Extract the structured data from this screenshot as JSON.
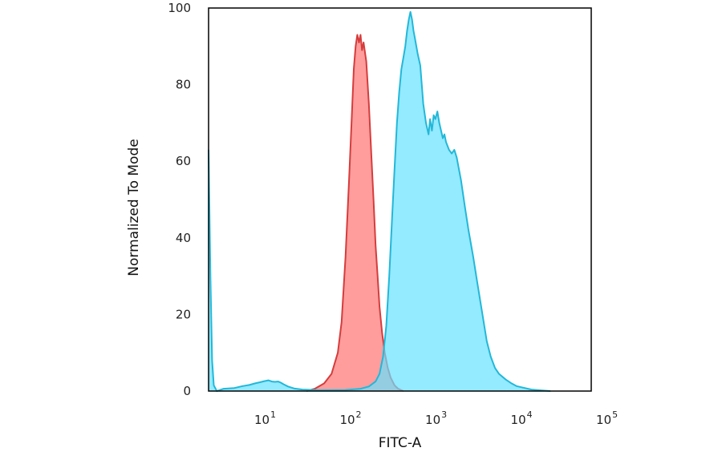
{
  "chart_data": {
    "type": "area",
    "xlabel": "FITC-A",
    "ylabel": "Normalized To Mode",
    "x_scale": "log",
    "xlim": [
      2,
      60000
    ],
    "ylim": [
      0,
      100
    ],
    "y_ticks": [
      {
        "value": 0,
        "label": "0"
      },
      {
        "value": 20,
        "label": "20"
      },
      {
        "value": 40,
        "label": "40"
      },
      {
        "value": 60,
        "label": "60"
      },
      {
        "value": 80,
        "label": "80"
      },
      {
        "value": 100,
        "label": "100"
      }
    ],
    "x_ticks": [
      {
        "value": 10,
        "base": "10",
        "exp": "1"
      },
      {
        "value": 100,
        "base": "10",
        "exp": "2"
      },
      {
        "value": 1000,
        "base": "10",
        "exp": "3"
      },
      {
        "value": 10000,
        "base": "10",
        "exp": "4"
      },
      {
        "value": 100000,
        "base": "10",
        "exp": "5"
      }
    ],
    "grid": false,
    "legend": "none",
    "series": [
      {
        "fill": "#ff8c8c",
        "stroke": "#d63c3c",
        "points": [
          [
            28,
            0
          ],
          [
            35,
            0.6
          ],
          [
            45,
            2
          ],
          [
            55,
            4.5
          ],
          [
            65,
            10
          ],
          [
            72,
            18
          ],
          [
            80,
            35
          ],
          [
            88,
            55
          ],
          [
            95,
            72
          ],
          [
            100,
            84
          ],
          [
            105,
            90
          ],
          [
            110,
            93
          ],
          [
            115,
            91
          ],
          [
            120,
            93
          ],
          [
            125,
            89
          ],
          [
            130,
            91
          ],
          [
            140,
            86
          ],
          [
            150,
            75
          ],
          [
            160,
            62
          ],
          [
            170,
            50
          ],
          [
            180,
            38
          ],
          [
            190,
            30
          ],
          [
            200,
            22
          ],
          [
            215,
            15
          ],
          [
            230,
            10
          ],
          [
            250,
            6
          ],
          [
            270,
            3.5
          ],
          [
            300,
            1.5
          ],
          [
            330,
            0.6
          ],
          [
            380,
            0
          ]
        ]
      },
      {
        "fill": "#66e1ff",
        "stroke": "#22b8d8",
        "points": [
          [
            2,
            63
          ],
          [
            2.1,
            30
          ],
          [
            2.2,
            8
          ],
          [
            2.3,
            1.5
          ],
          [
            2.5,
            0
          ],
          [
            3,
            0.6
          ],
          [
            4,
            0.8
          ],
          [
            5,
            1.3
          ],
          [
            6,
            1.6
          ],
          [
            7,
            2
          ],
          [
            8,
            2.3
          ],
          [
            9,
            2.6
          ],
          [
            10,
            2.8
          ],
          [
            11,
            2.5
          ],
          [
            12,
            2.4
          ],
          [
            13,
            2.5
          ],
          [
            14,
            2.2
          ],
          [
            15,
            1.8
          ],
          [
            17,
            1.2
          ],
          [
            20,
            0.7
          ],
          [
            25,
            0.4
          ],
          [
            40,
            0.2
          ],
          [
            80,
            0.3
          ],
          [
            120,
            0.6
          ],
          [
            150,
            1.2
          ],
          [
            180,
            2.5
          ],
          [
            200,
            4.5
          ],
          [
            220,
            9
          ],
          [
            240,
            17
          ],
          [
            260,
            30
          ],
          [
            280,
            45
          ],
          [
            300,
            58
          ],
          [
            320,
            70
          ],
          [
            340,
            78
          ],
          [
            360,
            84
          ],
          [
            380,
            87
          ],
          [
            400,
            90
          ],
          [
            420,
            94
          ],
          [
            440,
            97
          ],
          [
            460,
            99
          ],
          [
            480,
            97
          ],
          [
            500,
            94
          ],
          [
            520,
            92
          ],
          [
            540,
            90
          ],
          [
            560,
            88
          ],
          [
            600,
            85
          ],
          [
            650,
            75
          ],
          [
            700,
            70
          ],
          [
            750,
            67
          ],
          [
            780,
            71
          ],
          [
            820,
            68
          ],
          [
            860,
            72
          ],
          [
            900,
            71
          ],
          [
            950,
            73
          ],
          [
            1000,
            70
          ],
          [
            1050,
            68
          ],
          [
            1100,
            66
          ],
          [
            1150,
            67
          ],
          [
            1200,
            65
          ],
          [
            1300,
            63
          ],
          [
            1400,
            62
          ],
          [
            1500,
            63
          ],
          [
            1600,
            61
          ],
          [
            1800,
            55
          ],
          [
            2000,
            48
          ],
          [
            2200,
            42
          ],
          [
            2500,
            35
          ],
          [
            2800,
            28
          ],
          [
            3200,
            20
          ],
          [
            3600,
            13
          ],
          [
            4000,
            9
          ],
          [
            4500,
            6
          ],
          [
            5000,
            4.5
          ],
          [
            6000,
            3
          ],
          [
            7000,
            2
          ],
          [
            8000,
            1.3
          ],
          [
            10000,
            0.8
          ],
          [
            12000,
            0.4
          ],
          [
            15000,
            0.2
          ],
          [
            20000,
            0
          ]
        ]
      }
    ]
  }
}
